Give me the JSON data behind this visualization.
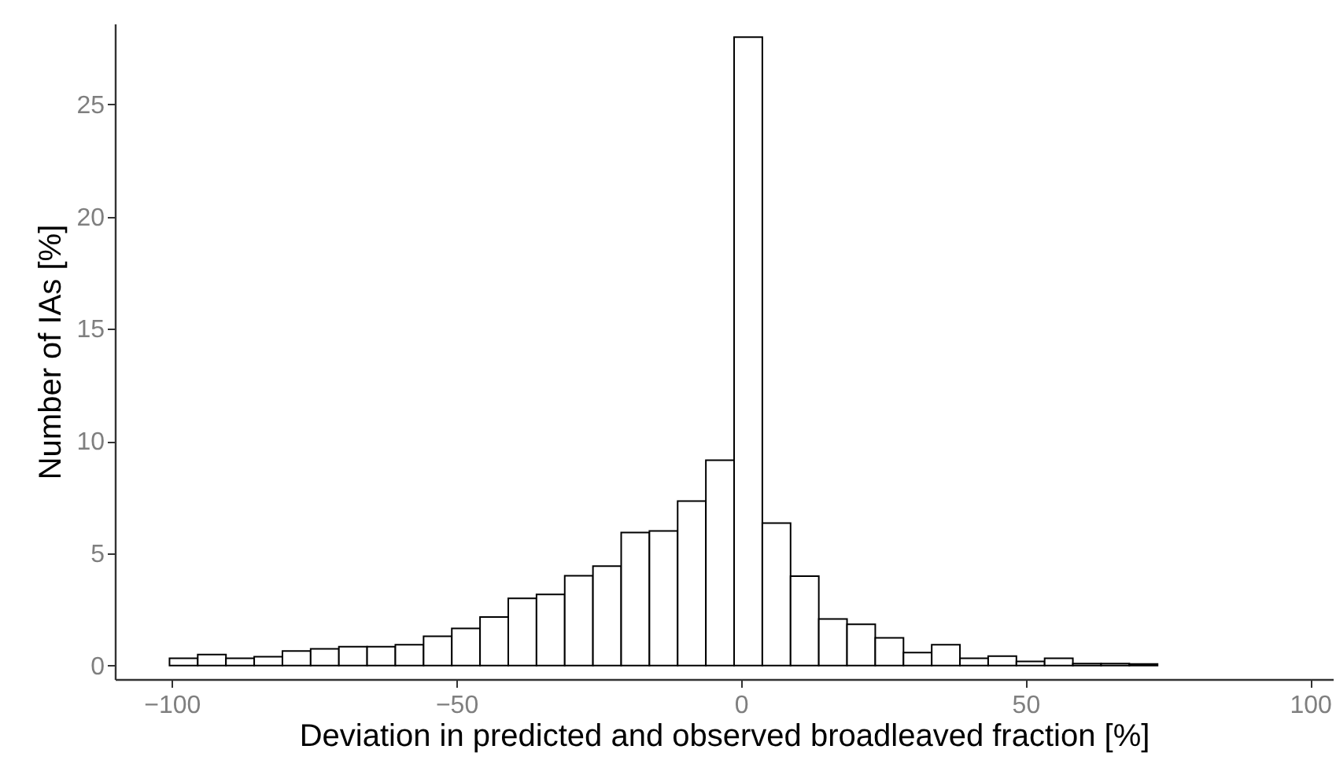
{
  "chart_data": {
    "type": "histogram",
    "xlabel": "Deviation in predicted and observed broadleaved fraction [%]",
    "ylabel": "Number of IAs [%]",
    "bins": [
      -100.4,
      -95.44,
      -90.48,
      -85.52,
      -80.56,
      -75.6,
      -70.64,
      -65.68,
      -60.72,
      -55.76,
      -50.8,
      -45.84,
      -40.88,
      -35.92,
      -30.96,
      -26,
      -21.04,
      -16.08,
      -11.12,
      -6.16,
      -1.2,
      3.76,
      8.72,
      13.68,
      18.64,
      23.6,
      28.56,
      33.52,
      38.48,
      43.44,
      48.4,
      53.36,
      58.32,
      63.28,
      68.24,
      73.2,
      78.16,
      83.12,
      88.08,
      93.04,
      98.0
    ],
    "values": [
      0.33,
      0.49,
      0.33,
      0.4,
      0.65,
      0.75,
      0.84,
      0.84,
      0.93,
      1.31,
      1.66,
      2.17,
      3.0,
      3.17,
      4.0,
      4.43,
      5.93,
      6.0,
      7.33,
      9.15,
      28.0,
      6.35,
      3.99,
      2.08,
      1.84,
      1.24,
      0.58,
      0.93,
      0.33,
      0.42,
      0.19,
      0.33,
      0.09,
      0.09,
      0.07,
      null,
      null,
      null,
      null,
      null
    ],
    "color": "#ffffff",
    "xlim": [
      -110,
      104
    ],
    "xticks": [
      -100,
      -50,
      0,
      50,
      100
    ],
    "ylim": [
      -0.6,
      28.6
    ],
    "yticks": [
      0,
      5,
      10,
      15,
      20,
      25
    ]
  }
}
